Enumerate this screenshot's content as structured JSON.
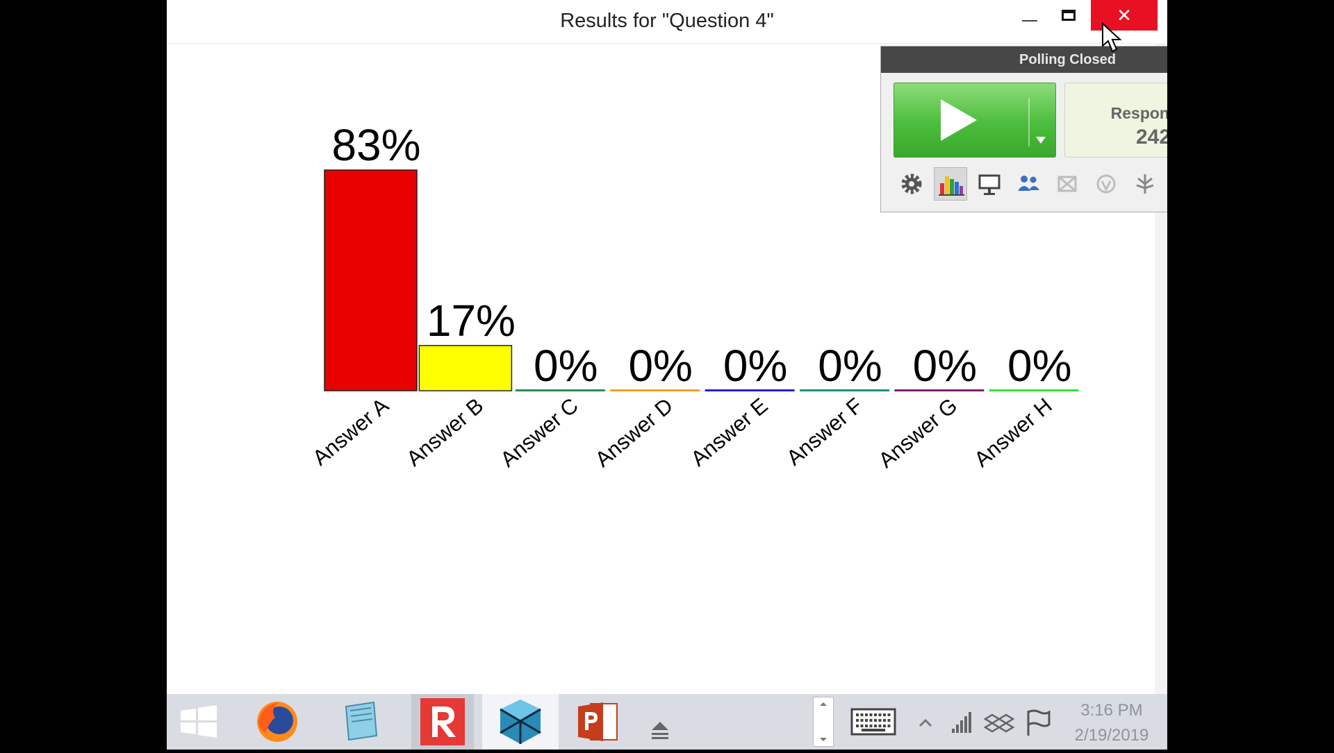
{
  "window": {
    "title": "Results for \"Question 4\"",
    "close_glyph": "✕"
  },
  "chart_data": {
    "type": "bar",
    "categories": [
      "Answer A",
      "Answer B",
      "Answer C",
      "Answer D",
      "Answer E",
      "Answer F",
      "Answer G",
      "Answer H"
    ],
    "values": [
      83,
      17,
      0,
      0,
      0,
      0,
      0,
      0
    ],
    "value_labels": [
      "83%",
      "17%",
      "0%",
      "0%",
      "0%",
      "0%",
      "0%",
      "0%"
    ],
    "colors": [
      "#e60000",
      "#ffff00",
      "#2e8b57",
      "#f4a020",
      "#2222d0",
      "#20907a",
      "#7b1f6e",
      "#3ee03e"
    ],
    "ylim": [
      0,
      100
    ],
    "title": "",
    "xlabel": "",
    "ylabel": "",
    "grid": false,
    "legend": "none"
  },
  "poll_panel": {
    "title": "Polling Closed",
    "close_glyph": "✕",
    "responses_label": "Responses",
    "responses_value": "242",
    "toolbar_icons": [
      "gear-icon",
      "bar-chart-icon",
      "projector-icon",
      "participants-icon",
      "grid-icon",
      "shield-icon",
      "hand-icon",
      "speech-bubble-icon",
      "export-icon"
    ]
  },
  "taskbar": {
    "icons": [
      "windows-start-icon",
      "firefox-icon",
      "notepad-icon",
      "reveal-r-icon",
      "virtualbox-icon",
      "powerpoint-icon"
    ],
    "tray_icons": [
      "keyboard-icon",
      "chevron-up-icon",
      "signal-icon",
      "dropbox-icon",
      "flag-icon"
    ],
    "time": "3:16 PM",
    "date": "2/19/2019"
  }
}
